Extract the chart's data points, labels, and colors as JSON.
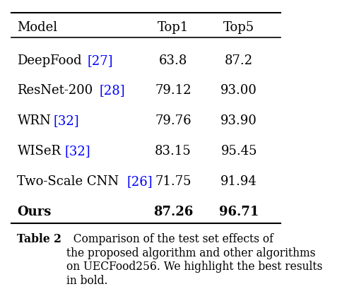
{
  "title": "Table 2",
  "caption_rest": "  Comparison of the test set effects of\nthe proposed algorithm and other algorithms\non UECFood256. We highlight the best results\nin bold.",
  "headers": [
    "Model",
    "Top1",
    "Top5"
  ],
  "rows": [
    {
      "model": "DeepFood",
      "ref": "[27]",
      "top1": "63.8",
      "top5": "87.2",
      "bold": false
    },
    {
      "model": "ResNet-200",
      "ref": "[28]",
      "top1": "79.12",
      "top5": "93.00",
      "bold": false
    },
    {
      "model": "WRN",
      "ref": "[32]",
      "top1": "79.76",
      "top5": "93.90",
      "bold": false
    },
    {
      "model": "WISeR",
      "ref": "[32]",
      "top1": "83.15",
      "top5": "95.45",
      "bold": false
    },
    {
      "model": "Two-Scale CNN",
      "ref": "[26]",
      "top1": "71.75",
      "top5": "91.94",
      "bold": false
    },
    {
      "model": "Ours",
      "ref": null,
      "top1": "87.26",
      "top5": "96.71",
      "bold": true
    }
  ],
  "ref_color": "#0000FF",
  "text_color": "#000000",
  "bg_color": "#FFFFFF",
  "table_fontsize": 13.0,
  "caption_fontsize": 11.2
}
